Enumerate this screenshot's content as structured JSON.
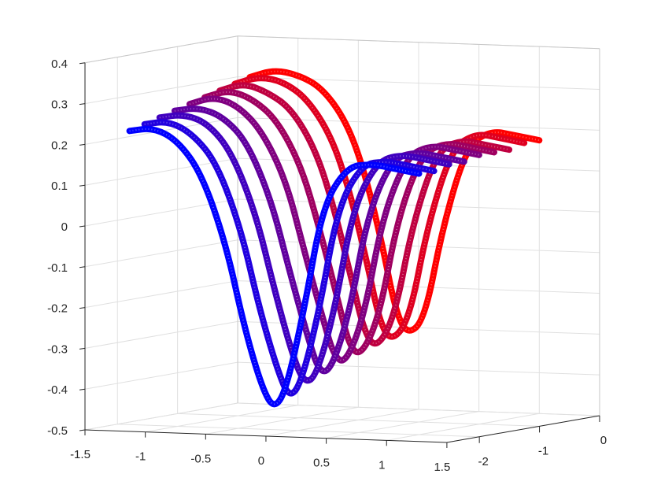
{
  "chart_data": {
    "type": "scatter3d",
    "title": "",
    "xlabel": "",
    "ylabel": "",
    "zlabel": "",
    "xlim": [
      -1.5,
      1.5
    ],
    "ylim": [
      -2.54,
      0
    ],
    "zlim": [
      -0.5,
      0.4
    ],
    "grid": true,
    "x_ticks": [
      {
        "value": -1.5,
        "label": "-1.5"
      },
      {
        "value": -1,
        "label": "-1"
      },
      {
        "value": -0.5,
        "label": "-0.5"
      },
      {
        "value": 0,
        "label": "0"
      },
      {
        "value": 0.5,
        "label": "0.5"
      },
      {
        "value": 1,
        "label": "1"
      },
      {
        "value": 1.5,
        "label": "1.5"
      }
    ],
    "y_ticks": [
      {
        "value": -2,
        "label": "-2"
      },
      {
        "value": -1,
        "label": "-1"
      },
      {
        "value": 0,
        "label": "0"
      }
    ],
    "z_ticks": [
      {
        "value": -0.5,
        "label": "-0.5"
      },
      {
        "value": -0.4,
        "label": "-0.4"
      },
      {
        "value": -0.3,
        "label": "-0.3"
      },
      {
        "value": -0.2,
        "label": "-0.2"
      },
      {
        "value": -0.1,
        "label": "-0.1"
      },
      {
        "value": 0,
        "label": "0"
      },
      {
        "value": 0.1,
        "label": "0.1"
      },
      {
        "value": 0.2,
        "label": "0.2"
      },
      {
        "value": 0.3,
        "label": "0.3"
      },
      {
        "value": 0.4,
        "label": "0.4"
      }
    ],
    "x": [
      -1.4,
      -1.2,
      -1.0,
      -0.8,
      -0.6,
      -0.45,
      -0.3,
      -0.2,
      -0.1,
      0.05,
      0.2,
      0.4,
      0.6,
      0.8,
      1.0
    ],
    "series": [
      {
        "y": -2.0,
        "color": "#0000ff",
        "z": [
          0.22,
          0.23,
          0.2,
          0.12,
          -0.05,
          -0.25,
          -0.4,
          -0.45,
          -0.4,
          -0.2,
          0.05,
          0.15,
          0.16,
          0.15,
          0.14
        ]
      },
      {
        "y": -1.75,
        "color": "#2000df",
        "z": [
          0.23,
          0.24,
          0.21,
          0.14,
          -0.02,
          -0.21,
          -0.36,
          -0.43,
          -0.39,
          -0.21,
          0.04,
          0.15,
          0.16,
          0.15,
          0.14
        ]
      },
      {
        "y": -1.5,
        "color": "#4000bf",
        "z": [
          0.24,
          0.25,
          0.23,
          0.16,
          0.01,
          -0.17,
          -0.33,
          -0.4,
          -0.38,
          -0.22,
          0.03,
          0.15,
          0.17,
          0.16,
          0.15
        ]
      },
      {
        "y": -1.25,
        "color": "#60009f",
        "z": [
          0.25,
          0.26,
          0.24,
          0.18,
          0.04,
          -0.13,
          -0.29,
          -0.38,
          -0.37,
          -0.23,
          0.01,
          0.15,
          0.17,
          0.16,
          0.15
        ]
      },
      {
        "y": -1.0,
        "color": "#800080",
        "z": [
          0.26,
          0.28,
          0.26,
          0.2,
          0.08,
          -0.09,
          -0.25,
          -0.35,
          -0.36,
          -0.24,
          0.0,
          0.15,
          0.18,
          0.17,
          0.16
        ]
      },
      {
        "y": -0.75,
        "color": "#9f0060",
        "z": [
          0.27,
          0.29,
          0.27,
          0.22,
          0.11,
          -0.04,
          -0.21,
          -0.33,
          -0.35,
          -0.25,
          -0.01,
          0.15,
          0.18,
          0.17,
          0.16
        ]
      },
      {
        "y": -0.5,
        "color": "#bf0040",
        "z": [
          0.28,
          0.3,
          0.28,
          0.24,
          0.14,
          0.0,
          -0.18,
          -0.3,
          -0.34,
          -0.26,
          -0.03,
          0.15,
          0.18,
          0.17,
          0.16
        ]
      },
      {
        "y": -0.25,
        "color": "#df0020",
        "z": [
          0.29,
          0.31,
          0.3,
          0.26,
          0.17,
          0.04,
          -0.14,
          -0.28,
          -0.33,
          -0.27,
          -0.04,
          0.15,
          0.19,
          0.18,
          0.17
        ]
      },
      {
        "y": 0.0,
        "color": "#ff0000",
        "z": [
          0.3,
          0.32,
          0.31,
          0.28,
          0.2,
          0.08,
          -0.1,
          -0.25,
          -0.32,
          -0.28,
          -0.05,
          0.15,
          0.19,
          0.18,
          0.17
        ]
      }
    ]
  }
}
